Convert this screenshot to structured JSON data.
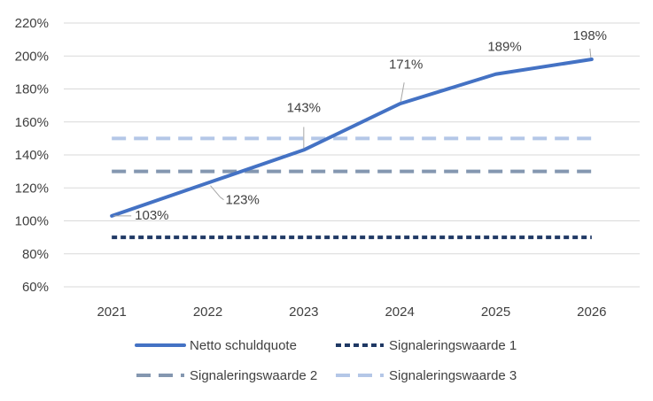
{
  "chart_data": {
    "type": "line",
    "title": "",
    "xlabel": "",
    "ylabel": "",
    "categories": [
      "2021",
      "2022",
      "2023",
      "2024",
      "2025",
      "2026"
    ],
    "ylim": [
      60,
      220
    ],
    "yticks": [
      60,
      80,
      100,
      120,
      140,
      160,
      180,
      200,
      220
    ],
    "ytick_labels": [
      "60%",
      "80%",
      "100%",
      "120%",
      "140%",
      "160%",
      "180%",
      "200%",
      "220%"
    ],
    "grid": true,
    "legend_position": "bottom",
    "series": [
      {
        "name": "Netto schuldquote",
        "values": [
          103,
          123,
          143,
          171,
          189,
          198
        ],
        "data_labels": [
          "103%",
          "123%",
          "143%",
          "171%",
          "189%",
          "198%"
        ],
        "color": "#4472c4",
        "style": "solid"
      },
      {
        "name": "Signaleringswaarde 1",
        "values": [
          90,
          90,
          90,
          90,
          90,
          90
        ],
        "color": "#1f3864",
        "style": "dotted"
      },
      {
        "name": "Signaleringswaarde 2",
        "values": [
          130,
          130,
          130,
          130,
          130,
          130
        ],
        "color": "#8497b0",
        "style": "dashed"
      },
      {
        "name": "Signaleringswaarde 3",
        "values": [
          150,
          150,
          150,
          150,
          150,
          150
        ],
        "color": "#b4c7e7",
        "style": "dashed"
      }
    ]
  }
}
